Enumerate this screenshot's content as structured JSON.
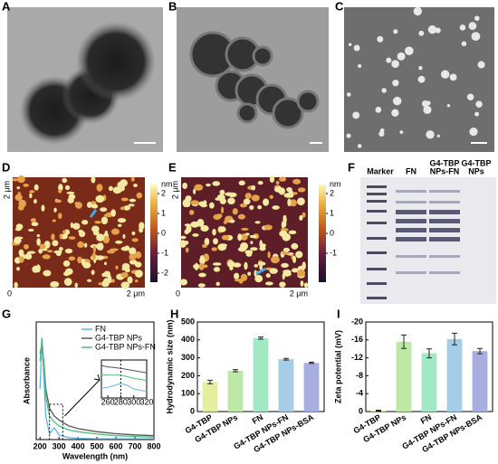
{
  "figure": {
    "panel_labels": [
      "A",
      "B",
      "C",
      "D",
      "E",
      "F",
      "G",
      "H",
      "I"
    ],
    "afm": [
      {
        "y_end": "2 μm",
        "origin": "0",
        "x_end": "2 μm",
        "unit": "nm",
        "colorbar_ticks": [
          2,
          1,
          0,
          -1,
          -2
        ]
      },
      {
        "y_end": "2 μm",
        "origin": "0",
        "x_end": "2 μm",
        "unit": "nm",
        "colorbar_ticks": [
          2,
          1,
          0,
          -1
        ]
      }
    ],
    "gel_lanes": [
      [
        "Marker"
      ],
      [
        "FN"
      ],
      [
        "G4-TBP",
        "NPs-FN"
      ],
      [
        "G4-TBP",
        "NPs"
      ]
    ]
  },
  "chart_data": [
    {
      "type": "line",
      "x_label": "Wavelength (nm)",
      "y_label": "Absorbance",
      "x": [
        200,
        210,
        220,
        230,
        250,
        275,
        300,
        350,
        400,
        500,
        600,
        700,
        800
      ],
      "xlim": [
        180,
        800
      ],
      "xticks": [
        200,
        300,
        400,
        500,
        600,
        700,
        800
      ],
      "ylim": [
        0,
        3
      ],
      "legend": "upper right",
      "series": [
        {
          "name": "FN",
          "color": "#5bb8e6",
          "values": [
            1.3,
            2.5,
            1.6,
            0.6,
            0.15,
            0.3,
            0.12,
            0.05,
            0.03,
            0.02,
            0.02,
            0.02,
            0.02
          ]
        },
        {
          "name": "G4-TBP NPs",
          "color": "#555555",
          "values": [
            2.2,
            2.4,
            2.0,
            1.3,
            0.8,
            0.6,
            0.5,
            0.35,
            0.28,
            0.2,
            0.15,
            0.12,
            0.1
          ]
        },
        {
          "name": "G4-TBP NPs-FN",
          "color": "#4cbf7e",
          "values": [
            2.0,
            2.6,
            1.9,
            1.1,
            0.6,
            0.45,
            0.35,
            0.25,
            0.2,
            0.14,
            0.1,
            0.08,
            0.06
          ]
        }
      ]
    },
    {
      "type": "line",
      "x": [
        250,
        260,
        270,
        280,
        290,
        300,
        310,
        320
      ],
      "xlim": [
        250,
        320
      ],
      "xticks": [
        260,
        280,
        300,
        320
      ],
      "ylim": [
        0,
        1
      ],
      "series": [
        {
          "color": "#5bb8e6",
          "values": [
            0.25,
            0.28,
            0.33,
            0.38,
            0.33,
            0.24,
            0.2,
            0.18
          ]
        },
        {
          "color": "#555555",
          "values": [
            0.85,
            0.82,
            0.8,
            0.78,
            0.75,
            0.72,
            0.69,
            0.66
          ]
        },
        {
          "color": "#4cbf7e",
          "values": [
            0.62,
            0.6,
            0.6,
            0.6,
            0.56,
            0.52,
            0.49,
            0.46
          ]
        }
      ]
    },
    {
      "type": "bar",
      "y_label": "Hydrodynamic size (nm)",
      "categories": [
        "G4-TBP",
        "G4-TBP NPs",
        "FN",
        "G4-TBP NPs-FN",
        "G4-TBP NPs-BSA"
      ],
      "values": [
        165,
        228,
        410,
        292,
        272
      ],
      "errors": [
        10,
        6,
        6,
        5,
        4
      ],
      "colors": [
        "#e5ee9e",
        "#bde8a6",
        "#a3e8c4",
        "#a6cde8",
        "#a9aee0"
      ],
      "ylim": [
        0,
        500
      ],
      "yticks": [
        0,
        100,
        200,
        300,
        400,
        500
      ]
    },
    {
      "type": "bar",
      "y_label": "Zeta potential (mV)",
      "categories": [
        "G4-TBP",
        "G4-TBP NPs",
        "FN",
        "G4-TBP NPs-FN",
        "G4-TBP NPs-BSA"
      ],
      "values": [
        -0.2,
        -15.6,
        -13,
        -16.2,
        -13.5
      ],
      "errors": [
        0.1,
        1.5,
        1,
        1.3,
        0.6
      ],
      "colors": [
        "#e5ee9e",
        "#bde8a6",
        "#a3e8c4",
        "#a6cde8",
        "#a9aee0"
      ],
      "ylim": [
        0,
        -20
      ],
      "yticks": [
        0,
        -4,
        -8,
        -12,
        -16,
        -20
      ]
    }
  ]
}
